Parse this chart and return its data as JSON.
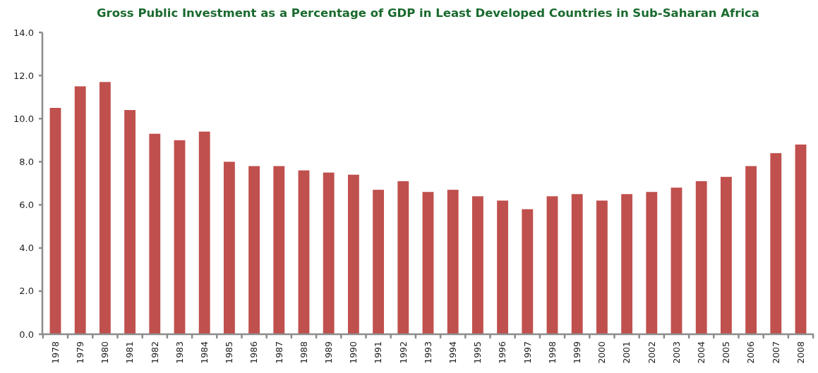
{
  "chart_data": {
    "type": "bar",
    "title": "Gross Public Investment as a Percentage of GDP in Least Developed Countries in Sub-Saharan Africa",
    "categories": [
      "1978",
      "1979",
      "1980",
      "1981",
      "1982",
      "1983",
      "1984",
      "1985",
      "1986",
      "1987",
      "1988",
      "1989",
      "1990",
      "1991",
      "1992",
      "1993",
      "1994",
      "1995",
      "1996",
      "1997",
      "1998",
      "1999",
      "2000",
      "2001",
      "2002",
      "2003",
      "2004",
      "2005",
      "2006",
      "2007",
      "2008"
    ],
    "values": [
      10.5,
      11.5,
      11.7,
      10.4,
      9.3,
      9.0,
      9.4,
      8.0,
      7.8,
      7.8,
      7.6,
      7.5,
      7.4,
      6.7,
      7.1,
      6.6,
      6.7,
      6.4,
      6.2,
      5.8,
      6.4,
      6.5,
      6.2,
      6.5,
      6.6,
      6.8,
      7.1,
      7.3,
      7.8,
      8.4,
      8.8
    ],
    "color": "#c0504d",
    "ylim": [
      0,
      14
    ],
    "yticks": [
      {
        "value": 0,
        "label": "0.0"
      },
      {
        "value": 2,
        "label": "2.0"
      },
      {
        "value": 4,
        "label": "4.0"
      },
      {
        "value": 6,
        "label": "6.0"
      },
      {
        "value": 8,
        "label": "8.0"
      },
      {
        "value": 10,
        "label": "10.0"
      },
      {
        "value": 12,
        "label": "12.0"
      },
      {
        "value": 14,
        "label": "14.0"
      }
    ],
    "grid": false
  }
}
